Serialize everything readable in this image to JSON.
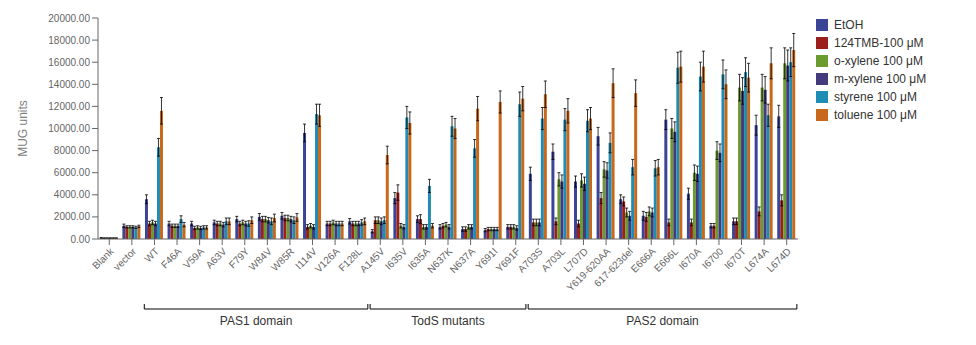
{
  "chart_data": {
    "type": "bar",
    "ylabel": "MUG units",
    "categories": [
      "Blank",
      "vector",
      "WT",
      "F46A",
      "V59A",
      "A63V",
      "F79Y",
      "W84V",
      "W85R",
      "I114V",
      "V126A",
      "F128L",
      "A145V",
      "I635V",
      "I635A",
      "N637K",
      "N637A",
      "Y691I",
      "Y691F",
      "A703S",
      "A703L",
      "L707D",
      "Y619-620AA",
      "617-623del",
      "E666A",
      "E666L",
      "I670A",
      "I6700",
      "I670T",
      "L674A",
      "L674D"
    ],
    "series": [
      {
        "name": "EtOH",
        "color": "#3c4496",
        "values": [
          100,
          1200,
          3600,
          1400,
          1400,
          1500,
          1800,
          2000,
          2100,
          9600,
          1400,
          1600,
          700,
          3700,
          1800,
          1100,
          900,
          800,
          1100,
          5900,
          7900,
          5200,
          9300,
          3600,
          2100,
          10800,
          4100,
          1200,
          1600,
          10300,
          11100
        ],
        "errors": [
          30,
          150,
          400,
          200,
          200,
          200,
          250,
          300,
          300,
          800,
          200,
          250,
          150,
          500,
          300,
          200,
          200,
          150,
          200,
          600,
          700,
          500,
          800,
          400,
          400,
          900,
          500,
          200,
          300,
          900,
          1000
        ]
      },
      {
        "name": "124TMB-100 μM",
        "color": "#9b1f1a",
        "values": [
          80,
          1100,
          1400,
          1200,
          1000,
          1400,
          1400,
          1800,
          1900,
          1100,
          1400,
          1400,
          1700,
          4200,
          1800,
          1200,
          900,
          900,
          1100,
          1500,
          1600,
          1400,
          3700,
          3400,
          2000,
          1500,
          1500,
          1200,
          1600,
          2500,
          3500
        ],
        "errors": [
          30,
          100,
          200,
          150,
          150,
          200,
          200,
          250,
          250,
          200,
          200,
          200,
          300,
          700,
          400,
          200,
          200,
          150,
          200,
          300,
          300,
          300,
          500,
          400,
          400,
          300,
          300,
          200,
          300,
          400,
          500
        ]
      },
      {
        "name": "o-xylene 100 μM",
        "color": "#6b9a2e",
        "values": [
          80,
          1100,
          1500,
          1200,
          1050,
          1400,
          1500,
          1800,
          1900,
          1200,
          1500,
          1400,
          1700,
          1200,
          1100,
          1300,
          1100,
          900,
          1100,
          1500,
          5400,
          5300,
          6300,
          2400,
          2500,
          10000,
          6000,
          8000,
          13700,
          13700,
          15900
        ],
        "errors": [
          30,
          100,
          200,
          150,
          150,
          200,
          200,
          250,
          250,
          200,
          200,
          200,
          300,
          200,
          200,
          200,
          200,
          150,
          200,
          300,
          600,
          600,
          700,
          400,
          400,
          900,
          700,
          800,
          1200,
          1200,
          1400
        ]
      },
      {
        "name": "m-xylene 100 μM",
        "color": "#443a7e",
        "values": [
          80,
          1100,
          1400,
          1200,
          1000,
          1300,
          1400,
          1700,
          1800,
          1100,
          1400,
          1400,
          1600,
          1100,
          1100,
          1100,
          1100,
          900,
          1000,
          1500,
          5200,
          5000,
          6200,
          2100,
          2400,
          9700,
          5900,
          7800,
          13400,
          13500,
          15700
        ],
        "errors": [
          30,
          100,
          200,
          150,
          150,
          200,
          200,
          250,
          250,
          200,
          200,
          200,
          300,
          200,
          200,
          200,
          200,
          150,
          200,
          300,
          600,
          600,
          700,
          400,
          400,
          900,
          700,
          800,
          1200,
          1200,
          1400
        ]
      },
      {
        "name": "styrene 100 μM",
        "color": "#1e8cb5",
        "values": [
          80,
          1050,
          8300,
          1800,
          1050,
          1600,
          1400,
          1600,
          1700,
          11300,
          1400,
          1500,
          1700,
          11000,
          4800,
          10200,
          8200,
          900,
          12200,
          10900,
          10800,
          10700,
          8700,
          6500,
          6400,
          15500,
          14700,
          14900,
          15100,
          11200,
          16000
        ],
        "errors": [
          30,
          100,
          800,
          300,
          150,
          300,
          250,
          300,
          300,
          900,
          200,
          250,
          300,
          1000,
          600,
          900,
          800,
          150,
          1100,
          1000,
          1000,
          1000,
          900,
          700,
          700,
          1400,
          1300,
          1300,
          1300,
          1000,
          1300
        ]
      },
      {
        "name": "toluene 100 μM",
        "color": "#c8681a",
        "values": [
          80,
          1150,
          11600,
          1300,
          1050,
          1600,
          1700,
          1900,
          1950,
          11200,
          1400,
          1600,
          7600,
          10500,
          1200,
          10000,
          11800,
          12400,
          12700,
          13100,
          11600,
          10900,
          14100,
          13200,
          6500,
          15600,
          15600,
          14000,
          14600,
          15900,
          17100
        ],
        "errors": [
          30,
          100,
          1200,
          200,
          150,
          300,
          300,
          350,
          350,
          1000,
          200,
          300,
          800,
          1000,
          200,
          900,
          1100,
          1000,
          1100,
          1200,
          1100,
          1000,
          1300,
          1200,
          700,
          1400,
          1400,
          1300,
          1300,
          1400,
          1500
        ]
      }
    ],
    "ylim": [
      0,
      20000
    ],
    "yticks": [
      {
        "value": 0,
        "label": "0.00"
      },
      {
        "value": 2000,
        "label": "2000.00"
      },
      {
        "value": 4000,
        "label": "4000.00"
      },
      {
        "value": 6000,
        "label": "6000.00"
      },
      {
        "value": 8000,
        "label": "8000.00"
      },
      {
        "value": 10000,
        "label": "10000.00"
      },
      {
        "value": 12000,
        "label": "12000.00"
      },
      {
        "value": 14000,
        "label": "14000.00"
      },
      {
        "value": 16000,
        "label": "16000.00"
      },
      {
        "value": 18000,
        "label": "18000.00"
      },
      {
        "value": 20000,
        "label": "20000.00"
      }
    ],
    "grid": false,
    "legend": "upper right",
    "annotations": [
      {
        "text": "PAS1 domain",
        "from": "WT",
        "to": "F128L"
      },
      {
        "text": "TodS mutants",
        "from": "A145V",
        "to": "Y691F"
      },
      {
        "text": "PAS2 domain",
        "from": "A703S",
        "to": "L674D"
      }
    ]
  }
}
